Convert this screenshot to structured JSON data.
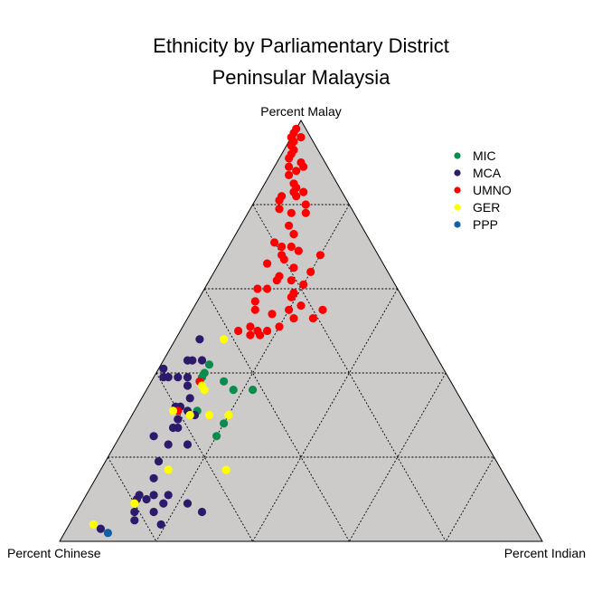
{
  "chart_data": {
    "type": "scatter",
    "subtype": "ternary",
    "title": "Ethnicity by Parliamentary District",
    "subtitle": "Peninsular Malaysia",
    "axes": {
      "top": "Percent Malay",
      "left": "Percent Chinese",
      "right": "Percent Indian"
    },
    "grid": true,
    "grid_step": 0.2,
    "legend_position": "top-right",
    "point_fields": [
      "malay",
      "chinese",
      "indian"
    ],
    "series": [
      {
        "name": "MIC",
        "color": "#0a8c4e",
        "points": [
          [
            0.42,
            0.48,
            0.1
          ],
          [
            0.4,
            0.5,
            0.1
          ],
          [
            0.39,
            0.51,
            0.1
          ],
          [
            0.38,
            0.47,
            0.15
          ],
          [
            0.36,
            0.46,
            0.18
          ],
          [
            0.36,
            0.42,
            0.22
          ],
          [
            0.31,
            0.56,
            0.13
          ],
          [
            0.28,
            0.52,
            0.2
          ],
          [
            0.25,
            0.55,
            0.2
          ]
        ]
      },
      {
        "name": "MCA",
        "color": "#2e1a6b",
        "points": [
          [
            0.48,
            0.47,
            0.05
          ],
          [
            0.43,
            0.52,
            0.05
          ],
          [
            0.43,
            0.51,
            0.06
          ],
          [
            0.43,
            0.49,
            0.08
          ],
          [
            0.41,
            0.58,
            0.01
          ],
          [
            0.39,
            0.59,
            0.02
          ],
          [
            0.39,
            0.58,
            0.03
          ],
          [
            0.39,
            0.56,
            0.05
          ],
          [
            0.39,
            0.54,
            0.07
          ],
          [
            0.37,
            0.55,
            0.08
          ],
          [
            0.34,
            0.56,
            0.1
          ],
          [
            0.32,
            0.6,
            0.08
          ],
          [
            0.32,
            0.59,
            0.09
          ],
          [
            0.31,
            0.58,
            0.11
          ],
          [
            0.3,
            0.57,
            0.13
          ],
          [
            0.29,
            0.61,
            0.1
          ],
          [
            0.27,
            0.63,
            0.1
          ],
          [
            0.27,
            0.62,
            0.11
          ],
          [
            0.25,
            0.68,
            0.07
          ],
          [
            0.23,
            0.66,
            0.11
          ],
          [
            0.23,
            0.62,
            0.15
          ],
          [
            0.19,
            0.7,
            0.11
          ],
          [
            0.15,
            0.73,
            0.12
          ],
          [
            0.11,
            0.75,
            0.14
          ],
          [
            0.11,
            0.78,
            0.11
          ],
          [
            0.11,
            0.72,
            0.17
          ],
          [
            0.1,
            0.79,
            0.11
          ],
          [
            0.1,
            0.77,
            0.13
          ],
          [
            0.09,
            0.74,
            0.17
          ],
          [
            0.09,
            0.69,
            0.22
          ],
          [
            0.07,
            0.81,
            0.12
          ],
          [
            0.07,
            0.77,
            0.16
          ],
          [
            0.07,
            0.67,
            0.26
          ],
          [
            0.05,
            0.82,
            0.13
          ],
          [
            0.04,
            0.77,
            0.19
          ],
          [
            0.03,
            0.9,
            0.07
          ]
        ]
      },
      {
        "name": "UMNO",
        "color": "#ff0000",
        "points": [
          [
            0.98,
            0.02,
            0.0
          ],
          [
            0.97,
            0.03,
            0.0
          ],
          [
            0.96,
            0.04,
            0.0
          ],
          [
            0.96,
            0.02,
            0.02
          ],
          [
            0.95,
            0.04,
            0.01
          ],
          [
            0.94,
            0.05,
            0.01
          ],
          [
            0.93,
            0.05,
            0.02
          ],
          [
            0.92,
            0.06,
            0.02
          ],
          [
            0.91,
            0.07,
            0.02
          ],
          [
            0.9,
            0.05,
            0.05
          ],
          [
            0.89,
            0.08,
            0.03
          ],
          [
            0.89,
            0.05,
            0.06
          ],
          [
            0.88,
            0.07,
            0.05
          ],
          [
            0.87,
            0.09,
            0.04
          ],
          [
            0.85,
            0.09,
            0.06
          ],
          [
            0.84,
            0.09,
            0.07
          ],
          [
            0.83,
            0.1,
            0.07
          ],
          [
            0.83,
            0.08,
            0.09
          ],
          [
            0.82,
            0.13,
            0.05
          ],
          [
            0.82,
            0.1,
            0.08
          ],
          [
            0.81,
            0.14,
            0.05
          ],
          [
            0.8,
            0.09,
            0.11
          ],
          [
            0.79,
            0.15,
            0.06
          ],
          [
            0.78,
            0.13,
            0.09
          ],
          [
            0.78,
            0.1,
            0.12
          ],
          [
            0.75,
            0.15,
            0.1
          ],
          [
            0.73,
            0.15,
            0.12
          ],
          [
            0.71,
            0.2,
            0.09
          ],
          [
            0.7,
            0.19,
            0.11
          ],
          [
            0.7,
            0.17,
            0.13
          ],
          [
            0.69,
            0.16,
            0.15
          ],
          [
            0.68,
            0.2,
            0.12
          ],
          [
            0.68,
            0.12,
            0.2
          ],
          [
            0.67,
            0.2,
            0.13
          ],
          [
            0.66,
            0.24,
            0.1
          ],
          [
            0.65,
            0.19,
            0.16
          ],
          [
            0.64,
            0.16,
            0.2
          ],
          [
            0.63,
            0.23,
            0.14
          ],
          [
            0.62,
            0.24,
            0.14
          ],
          [
            0.62,
            0.21,
            0.17
          ],
          [
            0.61,
            0.19,
            0.2
          ],
          [
            0.6,
            0.29,
            0.11
          ],
          [
            0.6,
            0.27,
            0.13
          ],
          [
            0.59,
            0.22,
            0.19
          ],
          [
            0.58,
            0.23,
            0.19
          ],
          [
            0.57,
            0.31,
            0.12
          ],
          [
            0.56,
            0.22,
            0.22
          ],
          [
            0.55,
            0.32,
            0.13
          ],
          [
            0.55,
            0.25,
            0.2
          ],
          [
            0.55,
            0.18,
            0.27
          ],
          [
            0.54,
            0.29,
            0.17
          ],
          [
            0.53,
            0.25,
            0.22
          ],
          [
            0.53,
            0.21,
            0.26
          ],
          [
            0.51,
            0.35,
            0.14
          ],
          [
            0.51,
            0.29,
            0.2
          ],
          [
            0.5,
            0.38,
            0.12
          ],
          [
            0.5,
            0.34,
            0.16
          ],
          [
            0.5,
            0.32,
            0.18
          ],
          [
            0.49,
            0.36,
            0.15
          ],
          [
            0.49,
            0.34,
            0.17
          ],
          [
            0.38,
            0.52,
            0.1
          ],
          [
            0.31,
            0.6,
            0.09
          ]
        ]
      },
      {
        "name": "GER",
        "color": "#ffff00",
        "points": [
          [
            0.48,
            0.42,
            0.1
          ],
          [
            0.37,
            0.52,
            0.11
          ],
          [
            0.36,
            0.52,
            0.12
          ],
          [
            0.31,
            0.61,
            0.08
          ],
          [
            0.3,
            0.58,
            0.12
          ],
          [
            0.3,
            0.54,
            0.16
          ],
          [
            0.3,
            0.5,
            0.2
          ],
          [
            0.17,
            0.69,
            0.14
          ],
          [
            0.17,
            0.57,
            0.26
          ],
          [
            0.09,
            0.8,
            0.11
          ],
          [
            0.04,
            0.91,
            0.05
          ]
        ]
      },
      {
        "name": "PPP",
        "color": "#1060a8",
        "points": [
          [
            0.02,
            0.89,
            0.09
          ]
        ]
      }
    ]
  }
}
